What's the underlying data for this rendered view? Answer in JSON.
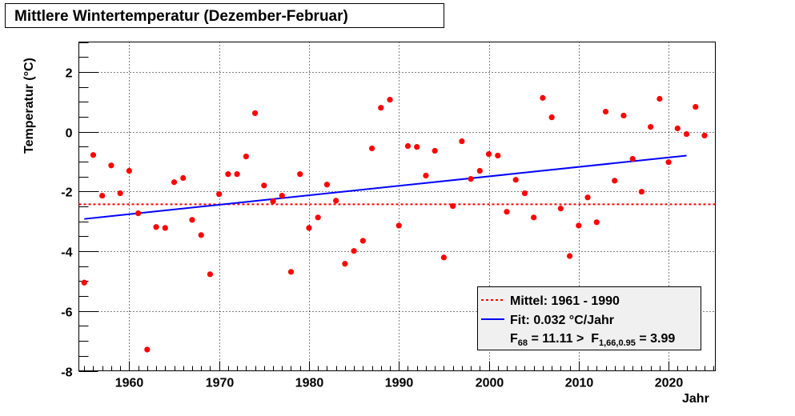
{
  "chart_data": {
    "type": "scatter",
    "title": "Mittlere Wintertemperatur (Dezember-Februar)",
    "xlabel": "Jahr",
    "ylabel": "Temperatur (°C)",
    "xlim": [
      1954.4,
      2025.2
    ],
    "ylim": [
      -8,
      3
    ],
    "xticks": [
      1960,
      1970,
      1980,
      1990,
      2000,
      2010,
      2020
    ],
    "yticks": [
      -8,
      -6,
      -4,
      -2,
      0,
      2
    ],
    "grid": true,
    "legend_position": "bottom-right",
    "colors": {
      "points": "#ff0000",
      "mean": "#ff0000",
      "fit": "#0000ff",
      "legend_bg": "#f0f0f0"
    },
    "x": [
      1955,
      1956,
      1957,
      1958,
      1959,
      1960,
      1961,
      1962,
      1963,
      1964,
      1965,
      1966,
      1967,
      1968,
      1969,
      1970,
      1971,
      1972,
      1973,
      1974,
      1975,
      1976,
      1977,
      1978,
      1979,
      1980,
      1981,
      1982,
      1983,
      1984,
      1985,
      1986,
      1987,
      1988,
      1989,
      1990,
      1991,
      1992,
      1993,
      1994,
      1995,
      1996,
      1997,
      1998,
      1999,
      2000,
      2001,
      2002,
      2003,
      2004,
      2005,
      2006,
      2007,
      2008,
      2009,
      2010,
      2011,
      2012,
      2013,
      2014,
      2015,
      2016,
      2017,
      2018,
      2019,
      2020,
      2021,
      2022,
      2023,
      2024
    ],
    "y": [
      -5.05,
      -0.78,
      -2.14,
      -1.13,
      -2.06,
      -1.31,
      -2.73,
      -7.29,
      -3.19,
      -3.22,
      -1.69,
      -1.55,
      -2.95,
      -3.46,
      -4.77,
      -2.09,
      -1.42,
      -1.42,
      -0.83,
      0.62,
      -1.8,
      -2.33,
      -2.14,
      -4.69,
      -1.42,
      -3.22,
      -2.87,
      -1.77,
      -2.31,
      -4.42,
      -3.99,
      -3.65,
      -0.56,
      0.8,
      1.07,
      -3.14,
      -0.48,
      -0.51,
      -1.47,
      -0.64,
      -4.21,
      -2.49,
      -0.32,
      -1.58,
      -1.31,
      -0.75,
      -0.8,
      -2.68,
      -1.61,
      -2.06,
      -2.87,
      1.13,
      0.48,
      -2.57,
      -4.16,
      -3.14,
      -2.2,
      -3.03,
      0.67,
      -1.64,
      0.54,
      -0.91,
      -2.01,
      0.16,
      1.1,
      -1.02,
      0.11,
      -0.08,
      0.83,
      -0.13
    ],
    "mean_line": {
      "value": -2.43
    },
    "fit_line": {
      "x": [
        1955,
        2022
      ],
      "y": [
        -2.92,
        -0.8
      ]
    },
    "legend": {
      "mean_label": "Mittel: 1961 - 1990",
      "fit_label": "Fit: 0.032 °C/Jahr",
      "ftest": {
        "f_main": "F",
        "f_sub": "68",
        "mid": " = 11.11 >  ",
        "f2_main": "F",
        "f2_sub": "1,66,0.95",
        "end": " = 3.99"
      }
    }
  }
}
